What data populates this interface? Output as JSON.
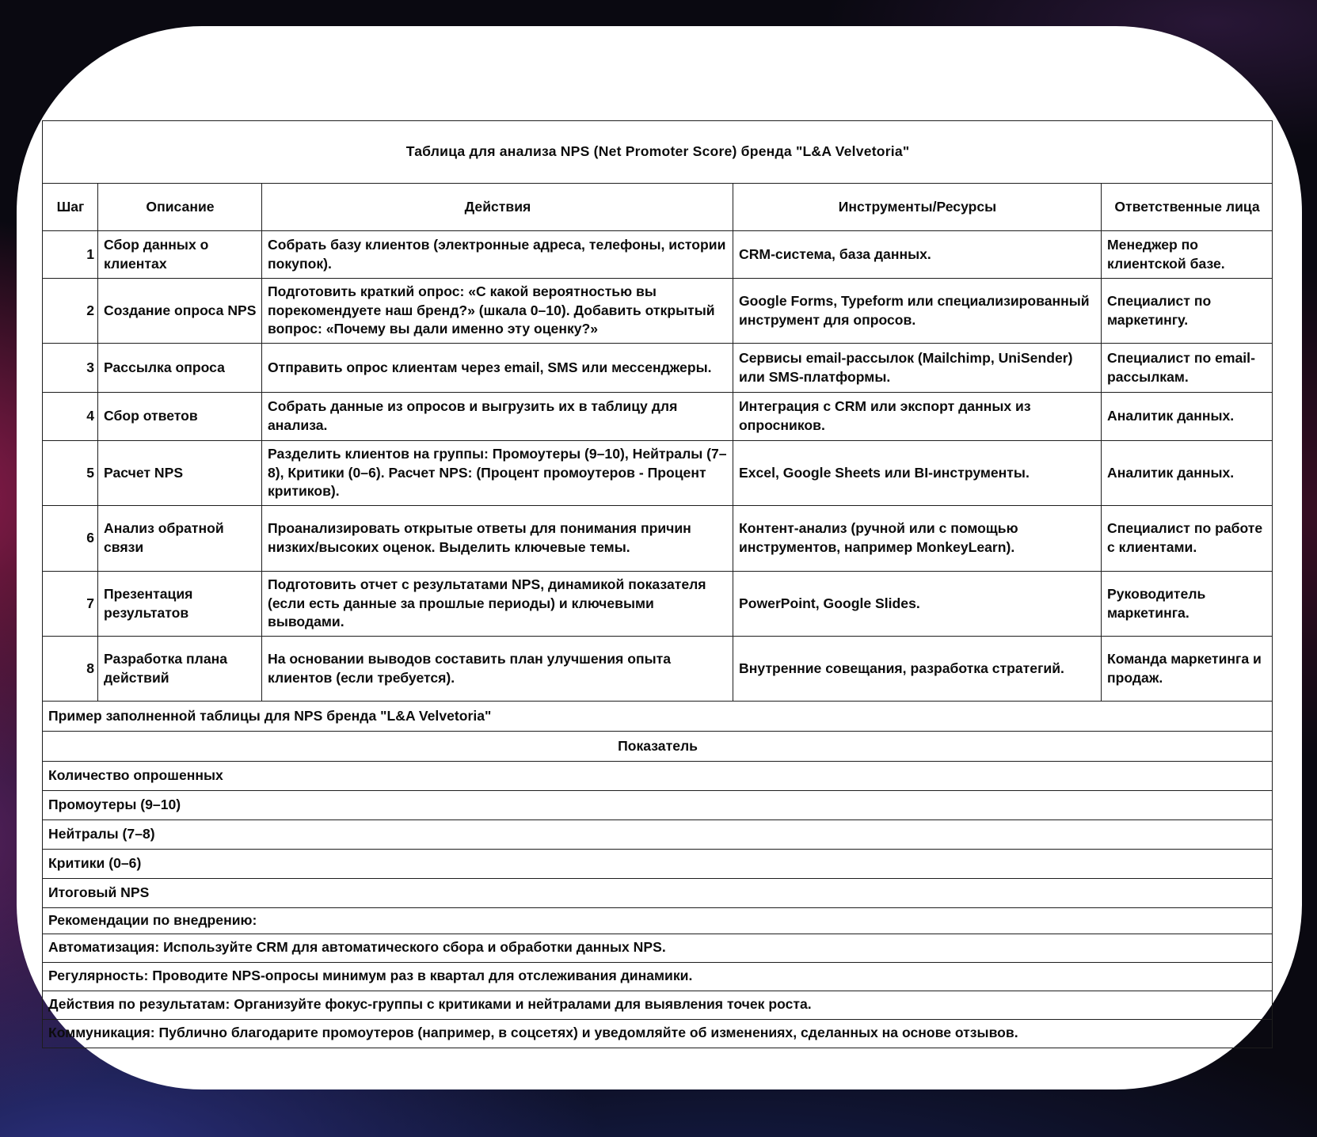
{
  "page": {
    "title": "Таблица для анализа NPS (Net Promoter Score) бренда \"L&A Velvetoria\""
  },
  "table": {
    "headers": [
      "Шаг",
      "Описание",
      "Действия",
      "Инструменты/Ресурсы",
      "Ответственные лица"
    ],
    "rows": [
      {
        "step": "1",
        "description": "Сбор данных о клиентах",
        "actions": "Собрать базу клиентов (электронные адреса, телефоны, истории покупок).",
        "tools": "CRM-система, база данных.",
        "owner": "Менеджер по клиентской базе."
      },
      {
        "step": "2",
        "description": "Создание опроса NPS",
        "actions": "Подготовить краткий опрос: «С какой вероятностью вы порекомендуете наш бренд?» (шкала 0–10). Добавить открытый вопрос: «Почему вы дали именно эту оценку?»",
        "tools": "Google Forms, Typeform или специализированный инструмент для опросов.",
        "owner": "Специалист по маркетингу."
      },
      {
        "step": "3",
        "description": "Рассылка опроса",
        "actions": "Отправить опрос клиентам через email, SMS или мессенджеры.",
        "tools": "Сервисы email-рассылок (Mailchimp, UniSender) или SMS-платформы.",
        "owner": "Специалист по email-рассылкам."
      },
      {
        "step": "4",
        "description": "Сбор ответов",
        "actions": "Собрать данные из опросов и выгрузить их в таблицу для анализа.",
        "tools": "Интеграция с CRM или экспорт данных из опросников.",
        "owner": "Аналитик данных."
      },
      {
        "step": "5",
        "description": "Расчет NPS",
        "actions": "Разделить клиентов на группы: Промоутеры (9–10), Нейтралы (7–8), Критики (0–6). Расчет NPS: (Процент промоутеров - Процент критиков).",
        "tools": "Excel, Google Sheets или BI-инструменты.",
        "owner": "Аналитик данных."
      },
      {
        "step": "6",
        "description": "Анализ обратной связи",
        "actions": "Проанализировать открытые ответы для понимания причин низких/высоких оценок. Выделить ключевые темы.",
        "tools": "Контент-анализ (ручной или с помощью инструментов, например MonkeyLearn).",
        "owner": "Специалист по работе с клиентами."
      },
      {
        "step": "7",
        "description": "Презентация результатов",
        "actions": "Подготовить отчет с результатами NPS, динамикой показателя (если есть данные за прошлые периоды) и ключевыми выводами.",
        "tools": "PowerPoint, Google Slides.",
        "owner": "Руководитель маркетинга."
      },
      {
        "step": "8",
        "description": "Разработка плана действий",
        "actions": "На основании выводов составить план улучшения опыта клиентов (если требуется).",
        "tools": "Внутренние совещания, разработка стратегий.",
        "owner": "Команда маркетинга и продаж."
      }
    ]
  },
  "example_section": {
    "caption": "Пример заполненной таблицы для NPS бренда \"L&A Velvetoria\"",
    "metric_header": "Показатель",
    "metrics": [
      "Количество опрошенных",
      "Промоутеры (9–10)",
      "Нейтралы (7–8)",
      "Критики (0–6)",
      "Итоговый NPS"
    ]
  },
  "recommendations": {
    "heading": "Рекомендации по внедрению:",
    "items": [
      "Автоматизация: Используйте CRM для автоматического сбора и обработки данных NPS.",
      "Регулярность: Проводите NPS-опросы минимум раз в квартал для отслеживания динамики.",
      "Действия по результатам: Организуйте фокус-группы с критиками и нейтралами для выявления точек роста.",
      "Коммуникация: Публично благодарите промоутеров (например, в соцсетях) и уведомляйте об изменениях, сделанных на основе отзывов."
    ]
  },
  "colors": {
    "card_background": "#ffffff",
    "table_border": "#1d1d1d",
    "text": "#0c0c0c",
    "backdrop_black": "#0a0911",
    "backdrop_crimson": "#9a1e52",
    "backdrop_purple": "#702a7a",
    "backdrop_indigo": "#2e348a",
    "backdrop_navy": "#162054"
  }
}
